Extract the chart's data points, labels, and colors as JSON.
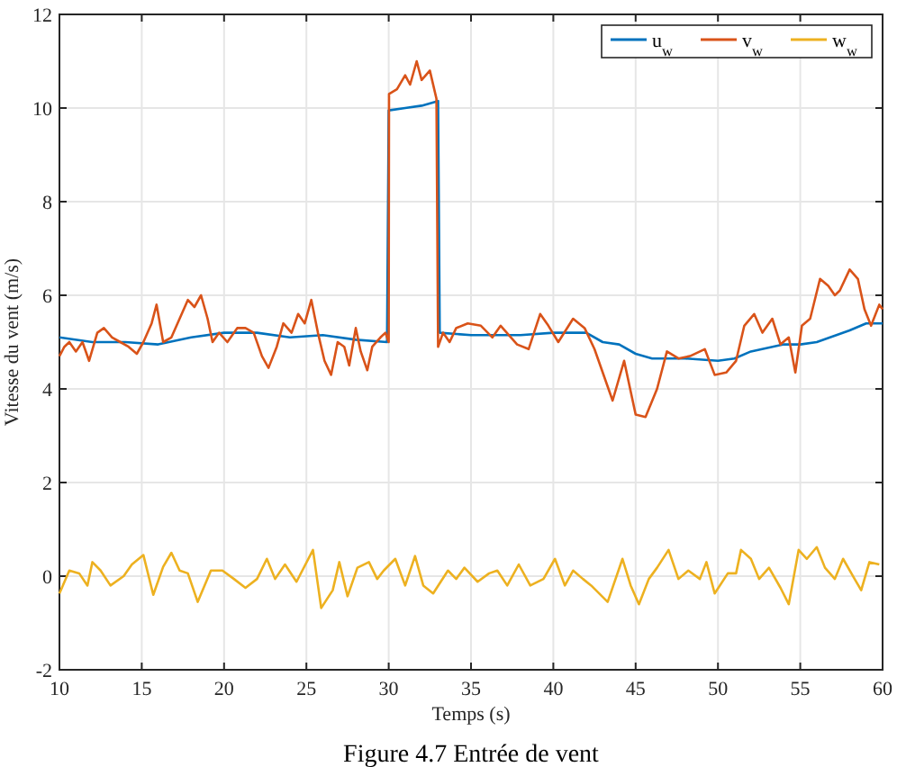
{
  "chart_data": {
    "type": "line",
    "xlabel": "Temps (s)",
    "ylabel": "Vitesse du vent (m/s)",
    "annotations": [
      "Figure 4.7 Entrée de vent"
    ],
    "xlim": [
      10,
      60
    ],
    "xticks": [
      10,
      15,
      20,
      25,
      30,
      35,
      40,
      45,
      50,
      55,
      60
    ],
    "ylim": [
      -2,
      12
    ],
    "yticks": [
      -2,
      0,
      2,
      4,
      6,
      8,
      10,
      12
    ],
    "grid": true,
    "legend": "top right",
    "line_style": "solid",
    "marker": "none",
    "series": [
      {
        "name": "u$_{w}$",
        "color": "#0072bd",
        "x": [
          10,
          12,
          14,
          16,
          18,
          20,
          22,
          24,
          26,
          28,
          29.9,
          30,
          31,
          32,
          33,
          33.1,
          35,
          38,
          40,
          42,
          43,
          44,
          45,
          46,
          48,
          50,
          51,
          52,
          54,
          55,
          56,
          58,
          59,
          60
        ],
        "values": [
          5.1,
          5.0,
          5.0,
          4.95,
          5.1,
          5.2,
          5.2,
          5.1,
          5.15,
          5.05,
          5.0,
          9.95,
          10.0,
          10.05,
          10.15,
          5.2,
          5.15,
          5.15,
          5.2,
          5.2,
          5.0,
          4.95,
          4.75,
          4.65,
          4.65,
          4.6,
          4.65,
          4.8,
          4.95,
          4.95,
          5.0,
          5.25,
          5.4,
          5.4
        ]
      },
      {
        "name": "v$_{w}$",
        "color": "#d95319",
        "x": [
          10,
          10.3,
          10.6,
          11,
          11.4,
          11.8,
          12.3,
          12.7,
          13.2,
          13.7,
          14.2,
          14.7,
          15.1,
          15.6,
          15.9,
          16.3,
          16.8,
          17.3,
          17.8,
          18.2,
          18.6,
          19,
          19.3,
          19.7,
          20.2,
          20.8,
          21.3,
          21.8,
          22.3,
          22.7,
          23.2,
          23.6,
          24.1,
          24.5,
          24.9,
          25.3,
          25.7,
          26.1,
          26.5,
          26.9,
          27.3,
          27.6,
          28,
          28.3,
          28.7,
          29,
          29.5,
          29.8,
          30,
          30.02,
          30.5,
          31,
          31.3,
          31.7,
          32,
          32.5,
          32.9,
          33,
          33.3,
          33.7,
          34.1,
          34.8,
          35.6,
          36.3,
          36.8,
          37.8,
          38.5,
          39.2,
          39.7,
          40.3,
          41.2,
          41.9,
          42.5,
          43,
          43.6,
          44.3,
          45,
          45.6,
          46.3,
          46.9,
          47.6,
          48.3,
          49.2,
          49.8,
          50.5,
          51.1,
          51.6,
          52.2,
          52.7,
          53.3,
          53.8,
          54.3,
          54.7,
          55.1,
          55.6,
          56.2,
          56.7,
          57.1,
          57.4,
          58,
          58.5,
          58.9,
          59.3,
          59.8,
          60
        ],
        "values": [
          4.7,
          4.9,
          5.0,
          4.8,
          5.0,
          4.6,
          5.2,
          5.3,
          5.1,
          5.0,
          4.9,
          4.75,
          5.0,
          5.4,
          5.8,
          5.0,
          5.1,
          5.5,
          5.9,
          5.75,
          6.0,
          5.5,
          5.0,
          5.2,
          5.0,
          5.3,
          5.3,
          5.2,
          4.7,
          4.45,
          4.9,
          5.4,
          5.2,
          5.6,
          5.4,
          5.9,
          5.2,
          4.6,
          4.3,
          5.0,
          4.9,
          4.5,
          5.3,
          4.8,
          4.4,
          4.9,
          5.1,
          5.2,
          5.0,
          10.3,
          10.4,
          10.7,
          10.5,
          11.0,
          10.6,
          10.8,
          10.2,
          4.9,
          5.2,
          5.0,
          5.3,
          5.4,
          5.35,
          5.1,
          5.35,
          4.95,
          4.85,
          5.6,
          5.35,
          5.0,
          5.5,
          5.3,
          4.85,
          4.35,
          3.75,
          4.6,
          3.45,
          3.4,
          4.0,
          4.8,
          4.65,
          4.7,
          4.85,
          4.3,
          4.35,
          4.6,
          5.35,
          5.6,
          5.2,
          5.5,
          4.95,
          5.1,
          4.35,
          5.35,
          5.5,
          6.35,
          6.2,
          6.0,
          6.1,
          6.55,
          6.35,
          5.7,
          5.35,
          5.8,
          5.7
        ]
      },
      {
        "name": "w$_{w}$",
        "color": "#edb120",
        "x": [
          10,
          10.6,
          11.2,
          11.7,
          12,
          12.5,
          13.1,
          13.9,
          14.4,
          15.1,
          15.7,
          16.3,
          16.8,
          17.3,
          17.8,
          18.4,
          19.2,
          19.9,
          20.6,
          21.3,
          22,
          22.6,
          23.1,
          23.7,
          24.4,
          25.4,
          25.9,
          26.6,
          27,
          27.5,
          28.1,
          28.8,
          29.3,
          29.7,
          30.4,
          31,
          31.6,
          32.1,
          32.7,
          33.6,
          34.1,
          34.6,
          35.4,
          36.1,
          36.6,
          37.2,
          37.9,
          38.6,
          39.4,
          40.1,
          40.7,
          41.2,
          41.8,
          42.3,
          43.3,
          44.2,
          44.7,
          45.2,
          45.8,
          46.3,
          47,
          47.6,
          48.2,
          48.9,
          49.3,
          49.8,
          50.6,
          51.1,
          51.4,
          52,
          52.5,
          53.1,
          53.8,
          54.3,
          54.9,
          55.4,
          56,
          56.5,
          57.1,
          57.6,
          58.3,
          58.7,
          59.2,
          59.8
        ],
        "values": [
          -0.37,
          0.12,
          0.06,
          -0.2,
          0.3,
          0.12,
          -0.2,
          0,
          0.25,
          0.45,
          -0.4,
          0.2,
          0.5,
          0.12,
          0.06,
          -0.55,
          0.12,
          0.12,
          -0.06,
          -0.25,
          -0.06,
          0.37,
          -0.06,
          0.25,
          -0.12,
          0.56,
          -0.68,
          -0.3,
          0.3,
          -0.43,
          0.18,
          0.3,
          -0.06,
          0.12,
          0.37,
          -0.2,
          0.43,
          -0.2,
          -0.37,
          0.12,
          -0.06,
          0.18,
          -0.12,
          0.06,
          0.12,
          -0.2,
          0.25,
          -0.2,
          -0.06,
          0.37,
          -0.2,
          0.12,
          -0.06,
          -0.2,
          -0.55,
          0.37,
          -0.2,
          -0.6,
          -0.06,
          0.18,
          0.56,
          -0.06,
          0.12,
          -0.06,
          0.3,
          -0.37,
          0.06,
          0.06,
          0.56,
          0.37,
          -0.06,
          0.18,
          -0.25,
          -0.6,
          0.56,
          0.37,
          0.62,
          0.18,
          -0.06,
          0.37,
          -0.06,
          -0.3,
          0.3,
          0.25
        ]
      }
    ]
  }
}
